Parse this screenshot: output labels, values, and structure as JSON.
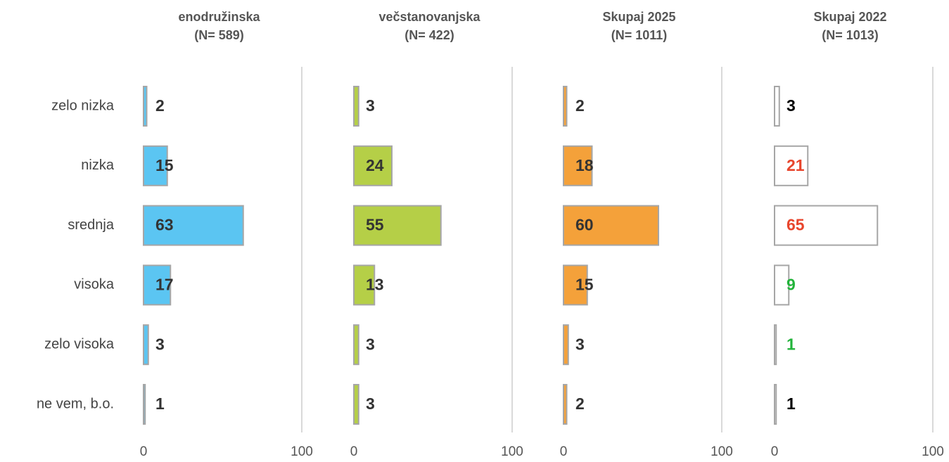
{
  "chart_data": [
    {
      "type": "bar",
      "orientation": "horizontal",
      "title": "enodružinska",
      "subtitle": "(N= 589)",
      "categories": [
        "zelo nizka",
        "nizka",
        "srednja",
        "visoka",
        "zelo visoka",
        "ne vem, b.o."
      ],
      "values": [
        2,
        15,
        63,
        17,
        3,
        1
      ],
      "color": "#5bc5f2",
      "label_colors": [
        "#333333",
        "#333333",
        "#333333",
        "#333333",
        "#333333",
        "#333333"
      ],
      "xlim": [
        0,
        100
      ],
      "xticks": [
        0,
        100
      ],
      "grid": true
    },
    {
      "type": "bar",
      "orientation": "horizontal",
      "title": "večstanovanjska",
      "subtitle": "(N= 422)",
      "values": [
        3,
        24,
        55,
        13,
        3,
        3
      ],
      "color": "#b5cf47",
      "label_colors": [
        "#333333",
        "#333333",
        "#333333",
        "#333333",
        "#333333",
        "#333333"
      ],
      "xlim": [
        0,
        100
      ],
      "xticks": [
        0,
        100
      ],
      "grid": true
    },
    {
      "type": "bar",
      "orientation": "horizontal",
      "title": "Skupaj 2025",
      "subtitle": "(N= 1011)",
      "values": [
        2,
        18,
        60,
        15,
        3,
        2
      ],
      "color": "#f4a13a",
      "label_colors": [
        "#333333",
        "#333333",
        "#333333",
        "#333333",
        "#333333",
        "#333333"
      ],
      "xlim": [
        0,
        100
      ],
      "xticks": [
        0,
        100
      ],
      "grid": true
    },
    {
      "type": "bar",
      "orientation": "horizontal",
      "title": "Skupaj 2022",
      "subtitle": "(N= 1013)",
      "values": [
        3,
        21,
        65,
        9,
        1,
        1
      ],
      "color": "#ffffff",
      "label_colors": [
        "#000000",
        "#e8452c",
        "#e8452c",
        "#22b33a",
        "#22b33a",
        "#000000"
      ],
      "xlim": [
        0,
        100
      ],
      "xticks": [
        0,
        100
      ],
      "grid": true
    }
  ]
}
